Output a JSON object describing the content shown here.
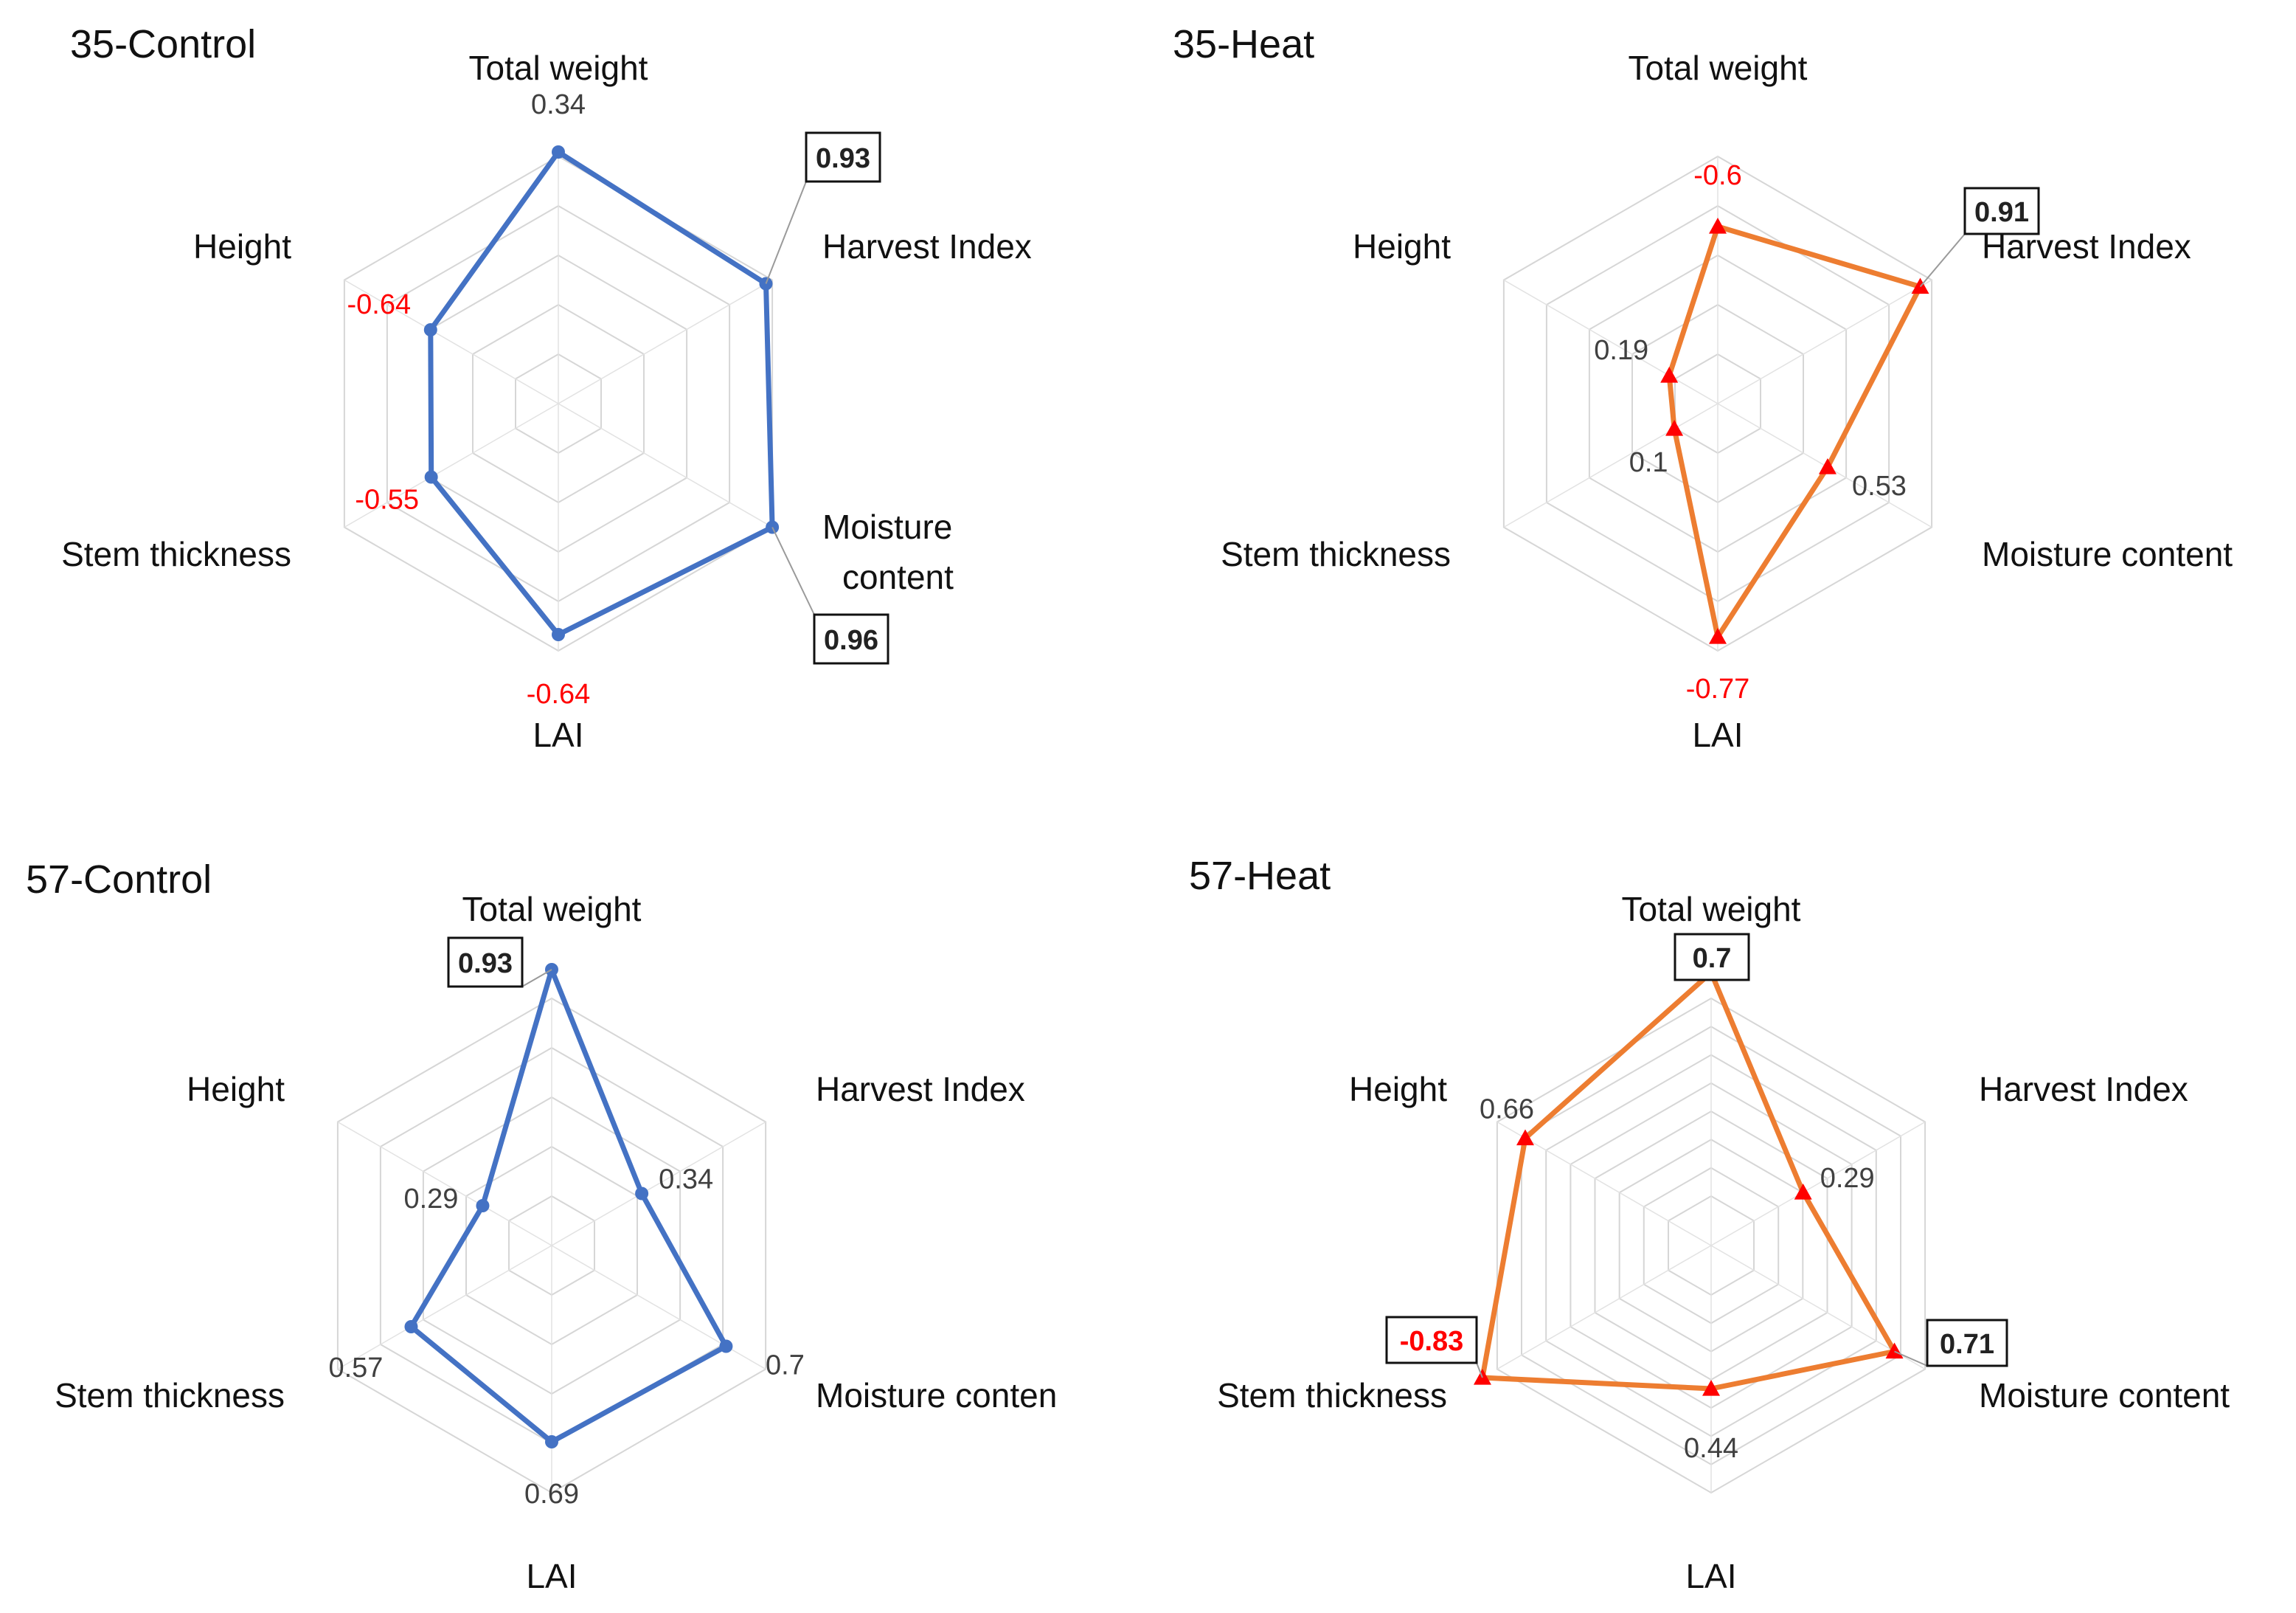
{
  "chart_data": [
    {
      "type": "radar",
      "title": "35-Control",
      "axes": [
        "Total weight",
        "Harvest Index",
        "Moisture content",
        "LAI",
        "Stem thickness",
        "Height"
      ],
      "axis_labels_display": [
        "Total weight",
        "Harvest Index",
        "Moisture\ncontent",
        "LAI",
        "Stem thickness",
        "Height"
      ],
      "series": [
        {
          "values": [
            0.34,
            0.93,
            0.96,
            -0.64,
            -0.55,
            -0.64
          ],
          "color": "#4472c4",
          "marker": "circle"
        }
      ],
      "value_labels": [
        "0.34",
        "0.93",
        "0.96",
        "-0.64",
        "-0.55",
        "-0.64"
      ],
      "highlighted_axes": [
        "Harvest Index",
        "Moisture content"
      ],
      "negative_label_color": "#ff0000",
      "grid_rings": 5
    },
    {
      "type": "radar",
      "title": "35-Heat",
      "axes": [
        "Total weight",
        "Harvest Index",
        "Moisture content",
        "LAI",
        "Stem thickness",
        "Height"
      ],
      "axis_labels_display": [
        "Total weight",
        "Harvest Index",
        "Moisture content",
        "LAI",
        "Stem thickness",
        "Height"
      ],
      "series": [
        {
          "values": [
            -0.6,
            0.91,
            0.53,
            -0.77,
            0.1,
            0.19
          ],
          "color": "#ed7d31",
          "marker": "triangle",
          "marker_color": "#ff0000"
        }
      ],
      "value_labels": [
        "-0.6",
        "0.91",
        "0.53",
        "-0.77",
        "0.1",
        "0.19"
      ],
      "highlighted_axes": [
        "Harvest Index"
      ],
      "negative_label_color": "#ff0000",
      "grid_rings": 5
    },
    {
      "type": "radar",
      "title": "57-Control",
      "axes": [
        "Total weight",
        "Harvest Index",
        "Moisture content",
        "LAI",
        "Stem thickness",
        "Height"
      ],
      "axis_labels_display": [
        "Total weight",
        "Harvest Index",
        "Moisture conten",
        "LAI",
        "Stem thickness",
        "Height"
      ],
      "series": [
        {
          "values": [
            0.93,
            0.34,
            0.7,
            0.69,
            0.57,
            0.29
          ],
          "color": "#4472c4",
          "marker": "circle"
        }
      ],
      "value_labels": [
        "0.93",
        "0.34",
        "0.7",
        "0.69",
        "0.57",
        "0.29"
      ],
      "highlighted_axes": [
        "Total weight"
      ],
      "negative_label_color": "#ff0000",
      "grid_rings": 5
    },
    {
      "type": "radar",
      "title": "57-Heat",
      "axes": [
        "Total weight",
        "Harvest Index",
        "Moisture content",
        "LAI",
        "Stem thickness",
        "Height"
      ],
      "axis_labels_display": [
        "Total weight",
        "Harvest Index",
        "Moisture content",
        "LAI",
        "Stem thickness",
        "Height"
      ],
      "series": [
        {
          "values": [
            0.7,
            0.29,
            0.71,
            0.44,
            -0.83,
            0.66
          ],
          "color": "#ed7d31",
          "marker": "triangle",
          "marker_color": "#ff0000"
        }
      ],
      "value_labels": [
        "0.7",
        "0.29",
        "0.71",
        "0.44",
        "-0.83",
        "0.66"
      ],
      "highlighted_axes": [
        "Total weight",
        "Moisture content",
        "Stem thickness"
      ],
      "negative_label_color": "#ff0000",
      "grid_rings": 8
    }
  ]
}
